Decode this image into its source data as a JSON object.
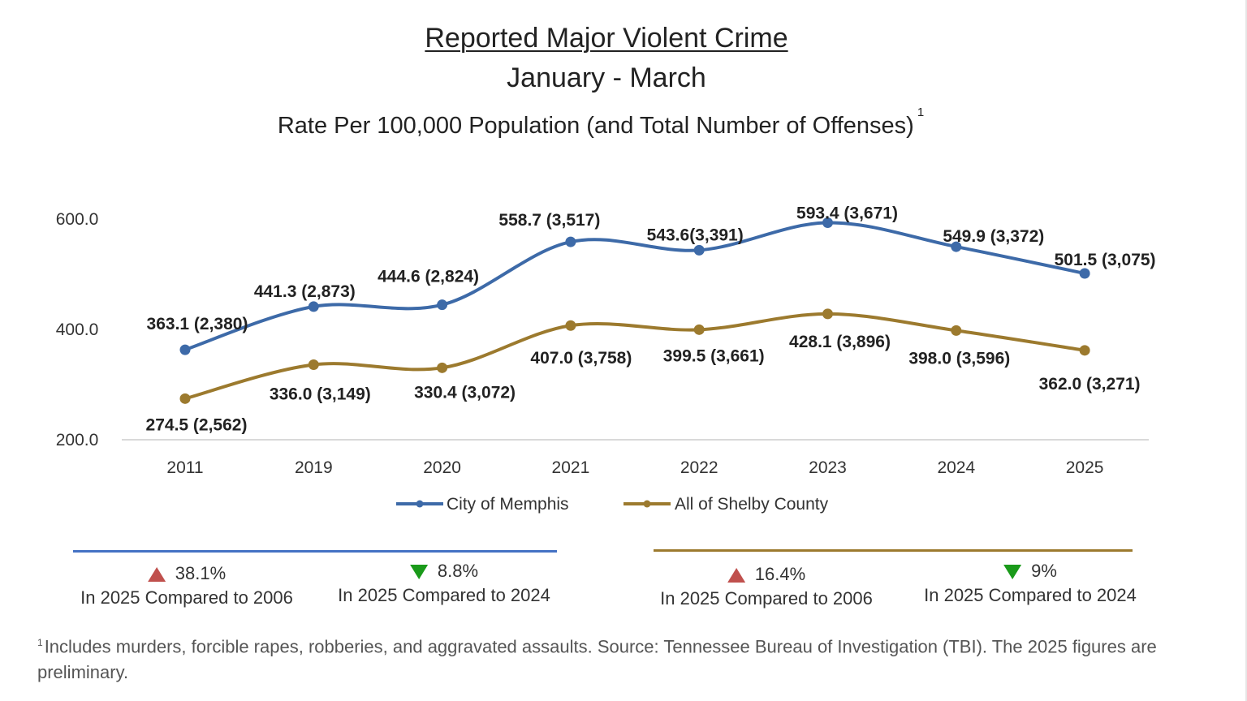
{
  "chart_data": {
    "type": "line",
    "title": "Reported Major Violent Crime",
    "subtitle": "January - March",
    "ylabel_note": "Rate Per 100,000 Population (and Total Number of Offenses)",
    "footnote_marker": "1",
    "categories": [
      "2011",
      "2019",
      "2020",
      "2021",
      "2022",
      "2023",
      "2024",
      "2025"
    ],
    "ylim": [
      200,
      600
    ],
    "yticks": [
      "200.0",
      "400.0",
      "600.0"
    ],
    "grid": false,
    "legend_position": "bottom",
    "series": [
      {
        "name": "City of Memphis",
        "color": "#3d6aa8",
        "values": [
          363.1,
          441.3,
          444.6,
          558.7,
          543.6,
          593.4,
          549.9,
          501.5
        ],
        "labels": [
          "363.1 (2,380)",
          "441.3 (2,873)",
          "444.6 (2,824)",
          "558.7 (3,517)",
          "543.6(3,391)",
          "593.4 (3,671)",
          "549.9 (3,372)",
          "501.5 (3,075)"
        ]
      },
      {
        "name": "All of Shelby County",
        "color": "#9c7a2e",
        "values": [
          274.5,
          336.0,
          330.4,
          407.0,
          399.5,
          428.1,
          398.0,
          362.0
        ],
        "labels": [
          "274.5 (2,562)",
          "336.0 (3,149)",
          "330.4 (3,072)",
          "407.0 (3,758)",
          "399.5 (3,661)",
          "428.1 (3,896)",
          "398.0 (3,596)",
          "362.0 (3,271)"
        ]
      }
    ]
  },
  "stats": {
    "memphis": [
      {
        "direction": "up",
        "value": "38.1%",
        "caption": "In 2025 Compared to 2006"
      },
      {
        "direction": "down",
        "value": "8.8%",
        "caption": "In 2025 Compared to 2024"
      }
    ],
    "shelby": [
      {
        "direction": "up",
        "value": "16.4%",
        "caption": "In 2025 Compared to 2006"
      },
      {
        "direction": "down",
        "value": "9%",
        "caption": "In 2025 Compared to 2024"
      }
    ],
    "colors": {
      "up": "#c0504d",
      "down": "#1a9a1a",
      "memphis_rule": "#4472c4",
      "shelby_rule": "#9c7a2e"
    }
  },
  "footnote": {
    "marker": "1",
    "text": "Includes murders, forcible rapes, robberies, and aggravated assaults. Source: Tennessee Bureau of Investigation (TBI). The 2025 figures are preliminary."
  }
}
